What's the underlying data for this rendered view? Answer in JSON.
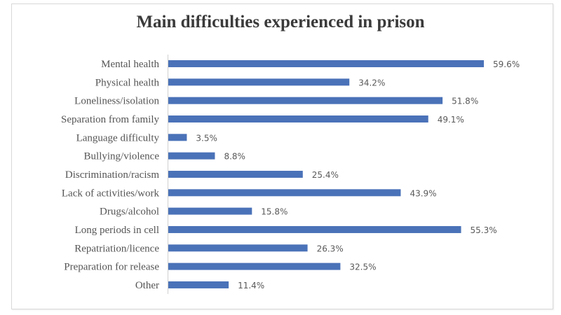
{
  "chart_data": {
    "type": "bar",
    "orientation": "horizontal",
    "title": "Main difficulties experienced in prison",
    "xlabel": "",
    "ylabel": "",
    "xlim": [
      0,
      60
    ],
    "grid": false,
    "legend": "none",
    "bar_color": "#4a72b8",
    "categories": [
      "Mental health",
      "Physical health",
      "Loneliness/isolation",
      "Separation from family",
      "Language difficulty",
      "Bullying/violence",
      "Discrimination/racism",
      "Lack of activities/work",
      "Drugs/alcohol",
      "Long periods in cell",
      "Repatriation/licence",
      "Preparation for release",
      "Other"
    ],
    "values": [
      59.6,
      34.2,
      51.8,
      49.1,
      3.5,
      8.8,
      25.4,
      43.9,
      15.8,
      55.3,
      26.3,
      32.5,
      11.4
    ],
    "value_labels": [
      "59.6%",
      "34.2%",
      "51.8%",
      "49.1%",
      "3.5%",
      "8.8%",
      "25.4%",
      "43.9%",
      "15.8%",
      "55.3%",
      "26.3%",
      "32.5%",
      "11.4%"
    ]
  }
}
